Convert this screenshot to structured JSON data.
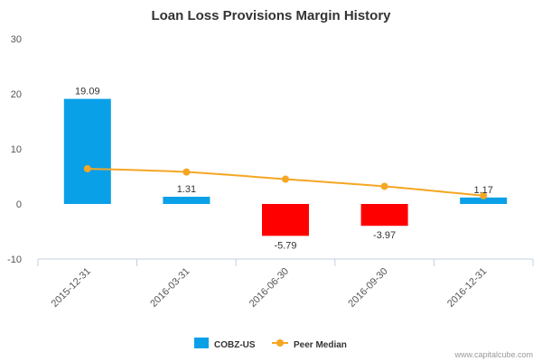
{
  "chart_data": {
    "type": "bar",
    "title": "Loan Loss Provisions Margin History",
    "categories": [
      "2015-12-31",
      "2016-03-31",
      "2016-06-30",
      "2016-09-30",
      "2016-12-31"
    ],
    "series": [
      {
        "name": "COBZ-US",
        "type": "bar",
        "values": [
          19.09,
          1.31,
          -5.79,
          -3.97,
          1.17
        ],
        "data_labels": [
          "19.09",
          "1.31",
          "-5.79",
          "-3.97",
          "1.17"
        ],
        "color": "#0aa0e8",
        "negative_color": "#ff0000"
      },
      {
        "name": "Peer Median",
        "type": "line",
        "values": [
          6.4,
          5.8,
          4.5,
          3.2,
          1.5
        ],
        "color": "#f5a623"
      }
    ],
    "ylim": [
      -10,
      30
    ],
    "yticks": [
      -10,
      0,
      10,
      20,
      30
    ],
    "xlabel": "",
    "ylabel": "",
    "legend_position": "bottom-center",
    "grid": false
  },
  "legend": [
    {
      "label": "COBZ-US"
    },
    {
      "label": "Peer Median"
    }
  ],
  "credit": "www.capitalcube.com"
}
